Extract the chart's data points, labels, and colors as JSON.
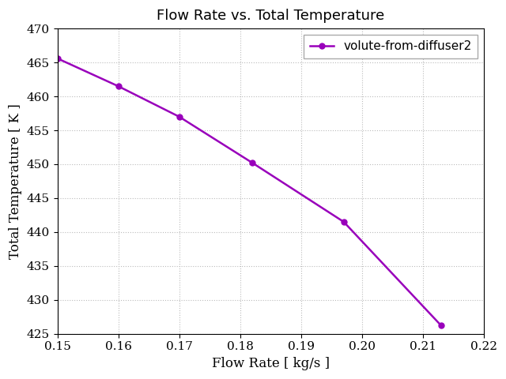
{
  "title": "Flow Rate vs. Total Temperature",
  "xlabel": "Flow Rate [ kg/s ]",
  "ylabel": "Total Temperature [ K ]",
  "x": [
    0.15,
    0.16,
    0.17,
    0.182,
    0.197,
    0.213
  ],
  "y": [
    465.6,
    461.5,
    457.0,
    450.2,
    441.5,
    426.2
  ],
  "line_color": "#9900bb",
  "marker": "o",
  "markersize": 5,
  "linewidth": 1.8,
  "legend_label": "volute-from-diffuser2",
  "xlim": [
    0.15,
    0.22
  ],
  "ylim": [
    425,
    470
  ],
  "xticks": [
    0.15,
    0.16,
    0.17,
    0.18,
    0.19,
    0.2,
    0.21,
    0.22
  ],
  "yticks": [
    425,
    430,
    435,
    440,
    445,
    450,
    455,
    460,
    465,
    470
  ],
  "grid": true,
  "grid_color": "#bbbbbb",
  "grid_linestyle": ":",
  "background_color": "#ffffff",
  "title_fontsize": 13,
  "label_fontsize": 12,
  "tick_fontsize": 11,
  "legend_fontsize": 11
}
